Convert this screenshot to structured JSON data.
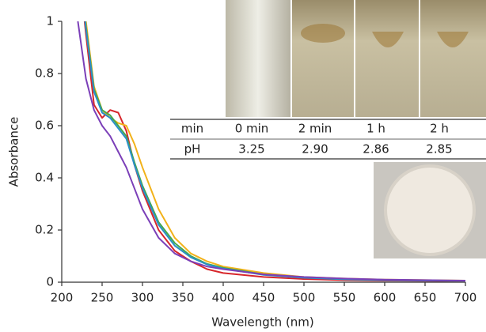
{
  "chart_data": {
    "type": "line",
    "x_label": "Wavelength (nm)",
    "y_label": "Absorbance",
    "x": [
      220,
      230,
      240,
      250,
      260,
      270,
      280,
      290,
      300,
      320,
      340,
      360,
      380,
      400,
      450,
      500,
      550,
      600,
      650,
      700
    ],
    "series": [
      {
        "color": "#d7262b",
        "values": [
          1.25,
          0.95,
          0.68,
          0.63,
          0.66,
          0.65,
          0.58,
          0.45,
          0.35,
          0.2,
          0.12,
          0.08,
          0.05,
          0.035,
          0.02,
          0.012,
          0.008,
          0.006,
          0.005,
          0.004
        ]
      },
      {
        "color": "#f2b21a",
        "values": [
          1.3,
          1.0,
          0.75,
          0.66,
          0.63,
          0.61,
          0.6,
          0.53,
          0.44,
          0.28,
          0.17,
          0.11,
          0.08,
          0.06,
          0.035,
          0.02,
          0.014,
          0.01,
          0.008,
          0.006
        ]
      },
      {
        "color": "#46a84a",
        "values": [
          1.28,
          0.98,
          0.74,
          0.66,
          0.64,
          0.6,
          0.56,
          0.46,
          0.37,
          0.23,
          0.15,
          0.1,
          0.07,
          0.055,
          0.03,
          0.018,
          0.012,
          0.009,
          0.007,
          0.005
        ]
      },
      {
        "color": "#2a8fc8",
        "values": [
          1.27,
          0.97,
          0.73,
          0.65,
          0.63,
          0.59,
          0.55,
          0.45,
          0.36,
          0.22,
          0.14,
          0.095,
          0.068,
          0.052,
          0.028,
          0.017,
          0.011,
          0.008,
          0.006,
          0.005
        ]
      },
      {
        "color": "#7b3fb8",
        "values": [
          1.0,
          0.78,
          0.66,
          0.6,
          0.56,
          0.5,
          0.44,
          0.36,
          0.28,
          0.17,
          0.11,
          0.08,
          0.06,
          0.05,
          0.03,
          0.02,
          0.014,
          0.01,
          0.008,
          0.006
        ]
      }
    ],
    "xlim": [
      200,
      700
    ],
    "xticks": [
      200,
      250,
      300,
      350,
      400,
      450,
      500,
      550,
      600,
      650,
      700
    ],
    "ylim": [
      0,
      1
    ],
    "yticks": [
      0,
      0.2,
      0.4,
      0.6,
      0.8,
      1
    ],
    "table": {
      "header": [
        "min",
        "0 min",
        "2 min",
        "1 h",
        "2 h"
      ],
      "rows": [
        [
          "pH",
          "3.25",
          "2.90",
          "2.86",
          "2.85"
        ]
      ]
    }
  }
}
